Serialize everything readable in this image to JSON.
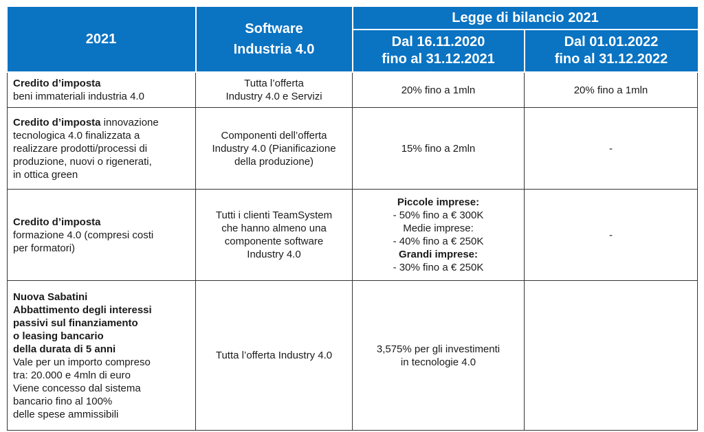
{
  "header": {
    "col_year": "2021",
    "col_software_l1": "Software",
    "col_software_l2": "Industria 4.0",
    "legge": "Legge di bilancio 2021",
    "period1_l1": "Dal 16.11.2020",
    "period1_l2": "fino al 31.12.2021",
    "period2_l1": "Dal  01.01.2022",
    "period2_l2": "fino al 31.12.2022"
  },
  "rows": [
    {
      "title_bold": "Credito d’imposta",
      "title_rest": "beni immateriali industria 4.0",
      "software_l1": "Tutta l’offerta",
      "software_l2": "Industry 4.0 e Servizi",
      "p1": "20% fino a 1mln",
      "p2": "20% fino a 1mln"
    },
    {
      "title_bold": "Credito d’imposta",
      "title_rest_l1": " innovazione",
      "title_rest_l2": "tecnologica 4.0 finalizzata a",
      "title_rest_l3": "realizzare prodotti/processi di",
      "title_rest_l4": "produzione, nuovi o rigenerati,",
      "title_rest_l5": "in ottica green",
      "software_l1": "Componenti dell’offerta",
      "software_l2": "Industry 4.0 (Pianificazione",
      "software_l3": "della produzione)",
      "p1": "15% fino a 2mln",
      "p2": "-"
    },
    {
      "title_bold": "Credito d’imposta",
      "title_rest_l1": "formazione 4.0 (compresi costi",
      "title_rest_l2": "per formatori)",
      "software_l1": "Tutti i clienti TeamSystem",
      "software_l2": "che hanno almeno una",
      "software_l3": "componente software",
      "software_l4": "Industry 4.0",
      "p1_small_label": "Piccole imprese:",
      "p1_small_value": "-  50% fino a € 300K",
      "p1_medium_label": "Medie imprese:",
      "p1_medium_value": "-  40% fino a € 250K",
      "p1_large_label": "Grandi imprese:",
      "p1_large_value": "-  30% fino a € 250K",
      "p2": "-"
    },
    {
      "title_b1": "Nuova Sabatini",
      "title_b2": "Abbattimento degli interessi",
      "title_b3": "passivi sul finanziamento",
      "title_b4": "o leasing bancario",
      "title_b5": "della durata di 5 anni",
      "title_r1": "Vale per un importo compreso",
      "title_r2": "tra: 20.000 e 4mln di euro",
      "title_r3": "Viene concesso dal sistema",
      "title_r4": "bancario fino al 100%",
      "title_r5": "delle spese ammissibili",
      "software": "Tutta l’offerta Industry 4.0",
      "p1_l1": "3,575% per gli investimenti",
      "p1_l2": "in tecnologie 4.0",
      "p2": ""
    }
  ]
}
